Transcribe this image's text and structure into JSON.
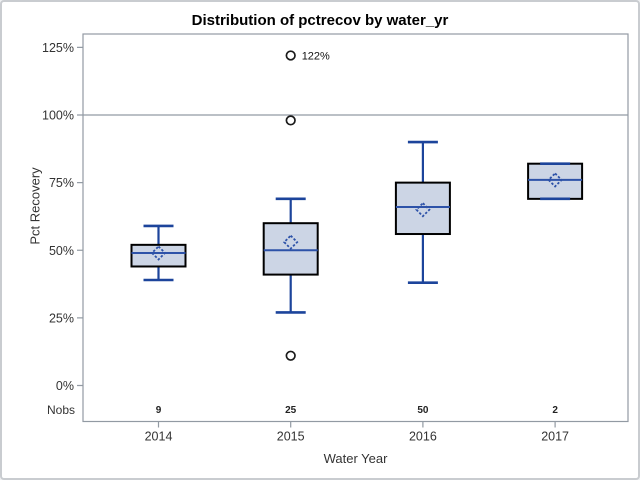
{
  "title": "Distribution of pctrecov by water_yr",
  "y_axis": {
    "label": "Pct Recovery",
    "ticks": [
      "0%",
      "25%",
      "50%",
      "75%",
      "100%",
      "125%"
    ],
    "tick_values": [
      0,
      25,
      50,
      75,
      100,
      125
    ]
  },
  "x_axis": {
    "label": "Water Year",
    "categories": [
      "2014",
      "2015",
      "2016",
      "2017"
    ]
  },
  "nobs": {
    "label": "Nobs",
    "values": [
      "9",
      "25",
      "50",
      "2"
    ]
  },
  "chart_data": {
    "type": "boxplot",
    "title": "Distribution of pctrecov by water_yr",
    "xlabel": "Water Year",
    "ylabel": "Pct Recovery",
    "ylim": [
      0,
      130
    ],
    "ytick_values": [
      0,
      25,
      50,
      75,
      100,
      125
    ],
    "refline": 100,
    "grid": false,
    "categories": [
      "2014",
      "2015",
      "2016",
      "2017"
    ],
    "nobs": [
      9,
      25,
      50,
      2
    ],
    "series": [
      {
        "category": "2014",
        "n": 9,
        "whisker_low": 39,
        "q1": 44,
        "median": 49,
        "mean": 49,
        "q3": 52,
        "whisker_high": 59,
        "outliers": []
      },
      {
        "category": "2015",
        "n": 25,
        "whisker_low": 27,
        "q1": 41,
        "median": 50,
        "mean": 53,
        "q3": 60,
        "whisker_high": 69,
        "outliers": [
          {
            "value": 122,
            "label": "122%"
          },
          {
            "value": 98
          },
          {
            "value": 11
          }
        ]
      },
      {
        "category": "2016",
        "n": 50,
        "whisker_low": 38,
        "q1": 56,
        "median": 66,
        "mean": 65,
        "q3": 75,
        "whisker_high": 90,
        "outliers": []
      },
      {
        "category": "2017",
        "n": 2,
        "whisker_low": 69,
        "q1": 69,
        "median": 76,
        "mean": 76,
        "q3": 82,
        "whisker_high": 82,
        "outliers": []
      }
    ]
  },
  "colors": {
    "box_fill": "#ccd5e5",
    "box_border": "#000000",
    "whisker": "#1c449b",
    "median": "#2d52a8",
    "mean_diamond": "#2d52a8",
    "outlier": "#1a1a1a",
    "axis": "#929aa3",
    "refline": "#929aa3",
    "text": "#333333",
    "frame_border": "#c9ccd0",
    "background": "#ffffff"
  }
}
